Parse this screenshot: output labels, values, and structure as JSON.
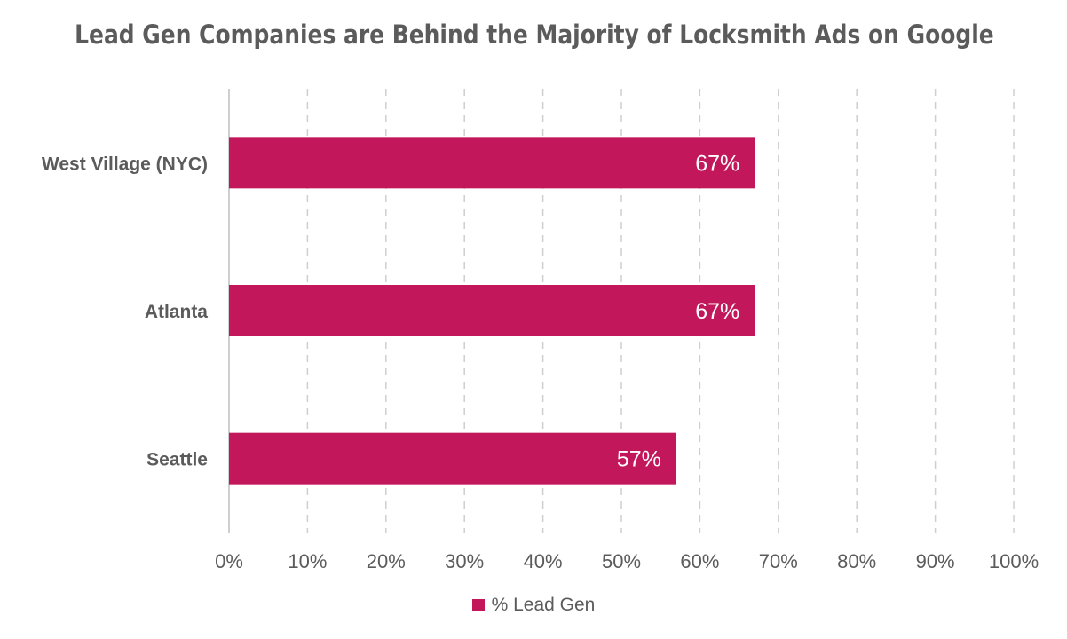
{
  "chart_data": {
    "type": "bar",
    "orientation": "horizontal",
    "title": "Lead Gen Companies are Behind the Majority of Locksmith Ads on Google",
    "categories": [
      "West Village (NYC)",
      "Atlanta",
      "Seattle"
    ],
    "series": [
      {
        "name": "% Lead Gen",
        "values": [
          67,
          67,
          57
        ],
        "color": "#c2185b"
      }
    ],
    "data_labels": [
      "67%",
      "67%",
      "57%"
    ],
    "xlim": [
      0,
      100
    ],
    "x_ticks": [
      0,
      10,
      20,
      30,
      40,
      50,
      60,
      70,
      80,
      90,
      100
    ],
    "x_tick_labels": [
      "0%",
      "10%",
      "20%",
      "30%",
      "40%",
      "50%",
      "60%",
      "70%",
      "80%",
      "90%",
      "100%"
    ],
    "grid": "vertical-dashed",
    "legend_position": "bottom"
  }
}
